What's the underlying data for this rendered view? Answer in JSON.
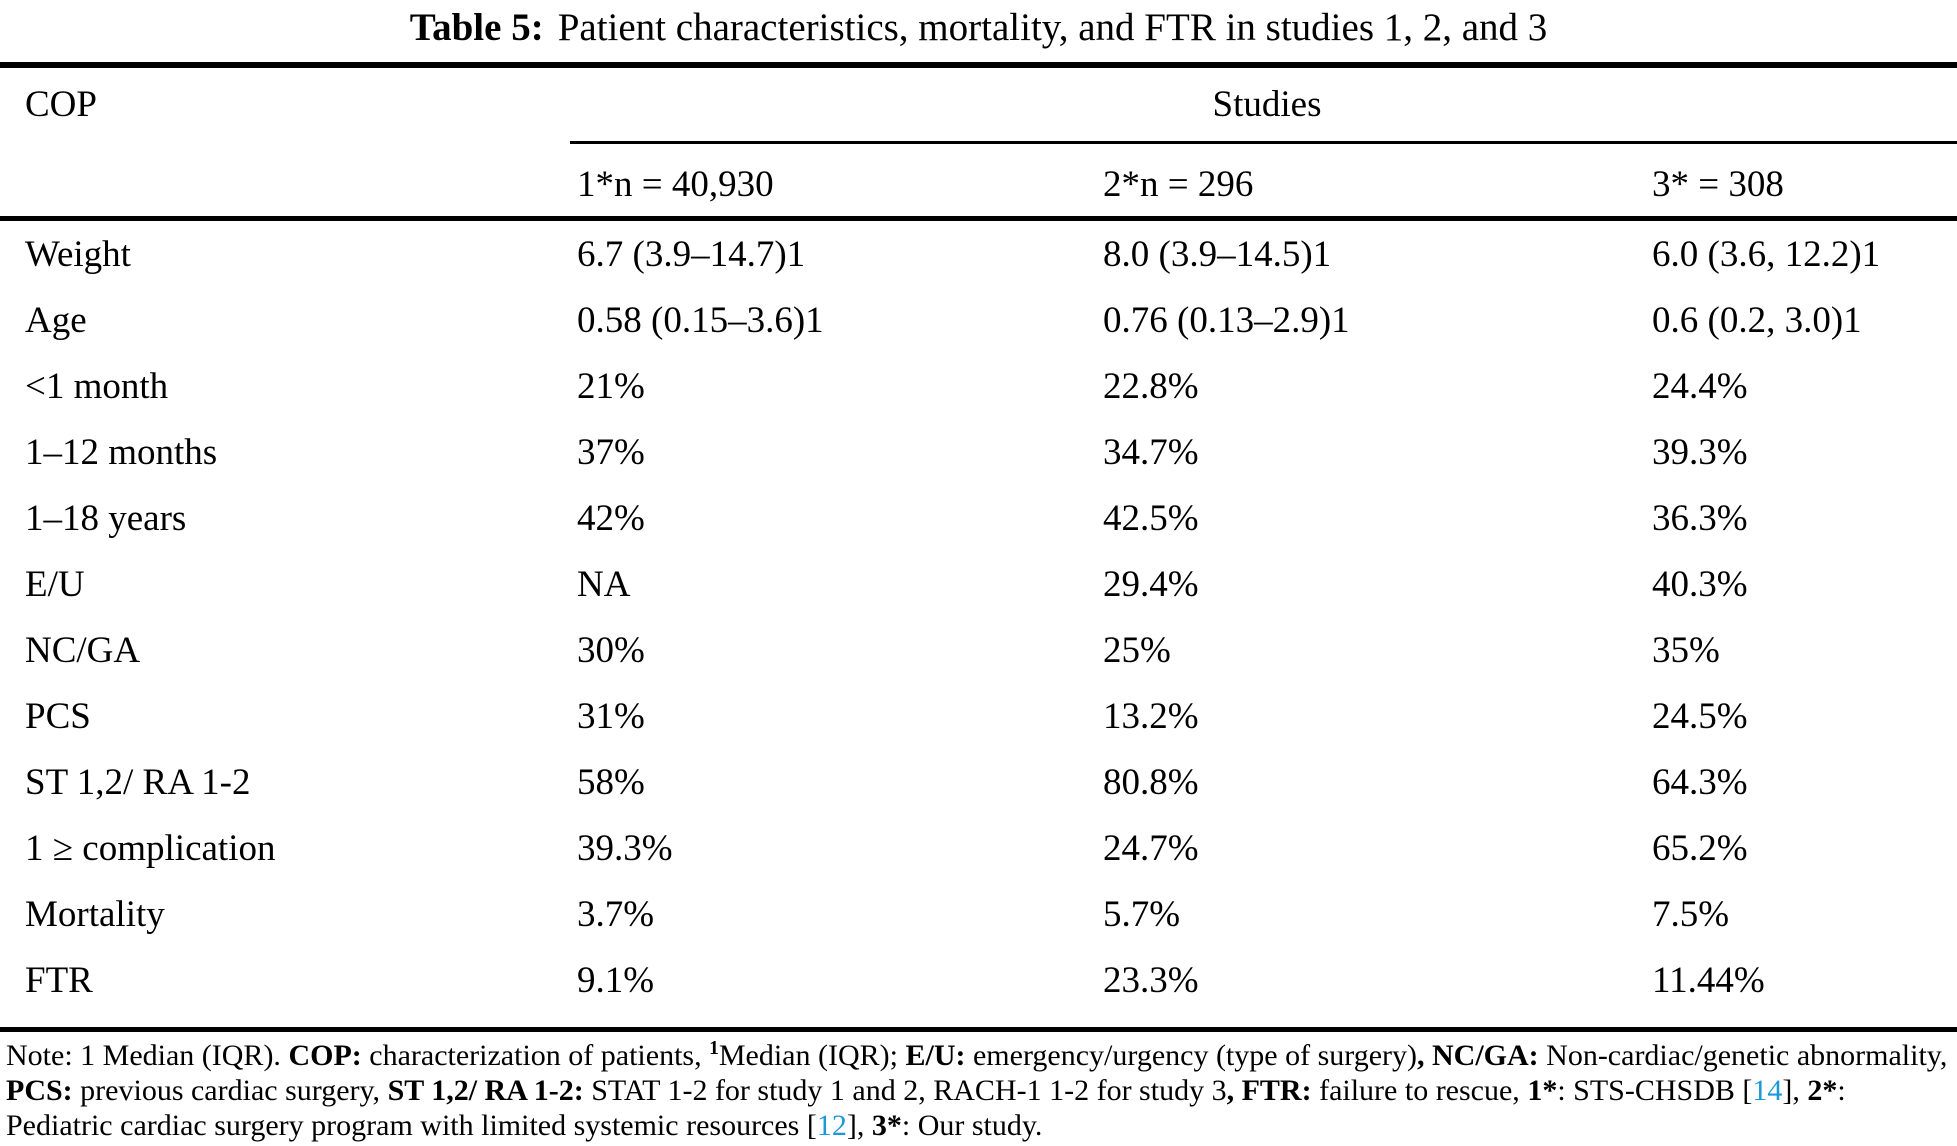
{
  "caption": {
    "label": "Table 5:",
    "title": "Patient characteristics, mortality, and FTR in studies 1, 2, and 3"
  },
  "header": {
    "row_label": "COP",
    "group_label": "Studies",
    "columns": [
      "1*n = 40,930",
      "2*n = 296",
      "3* = 308"
    ]
  },
  "table": {
    "rows": [
      {
        "label": "Weight",
        "study1": "6.7 (3.9–14.7)1",
        "study2": "8.0 (3.9–14.5)1",
        "study3": "6.0 (3.6, 12.2)1"
      },
      {
        "label": "Age",
        "study1": "0.58 (0.15–3.6)1",
        "study2": "0.76 (0.13–2.9)1",
        "study3": "0.6 (0.2, 3.0)1"
      },
      {
        "label": "<1 month",
        "study1": "21%",
        "study2": "22.8%",
        "study3": "24.4%"
      },
      {
        "label": "1–12 months",
        "study1": "37%",
        "study2": "34.7%",
        "study3": "39.3%"
      },
      {
        "label": "1–18 years",
        "study1": "42%",
        "study2": "42.5%",
        "study3": "36.3%"
      },
      {
        "label": "E/U",
        "study1": "NA",
        "study2": "29.4%",
        "study3": "40.3%"
      },
      {
        "label": "NC/GA",
        "study1": "30%",
        "study2": "25%",
        "study3": "35%"
      },
      {
        "label": "PCS",
        "study1": "31%",
        "study2": "13.2%",
        "study3": "24.5%"
      },
      {
        "label": "ST 1,2/ RA 1-2",
        "study1": "58%",
        "study2": "80.8%",
        "study3": "64.3%"
      },
      {
        "label": "1 ≥ complication",
        "study1": "39.3%",
        "study2": "24.7%",
        "study3": "65.2%"
      },
      {
        "label": "Mortality",
        "study1": "3.7%",
        "study2": "5.7%",
        "study3": "7.5%"
      },
      {
        "label": "FTR",
        "study1": "9.1%",
        "study2": "23.3%",
        "study3": "11.44%"
      }
    ]
  },
  "note": {
    "segments": [
      {
        "t": "Note: 1 Median (IQR). "
      },
      {
        "t": "COP:",
        "b": true
      },
      {
        "t": " characterization of patients, "
      },
      {
        "t": "1",
        "b": true,
        "sup": true
      },
      {
        "t": "Median (IQR); "
      },
      {
        "t": "E/U:",
        "b": true
      },
      {
        "t": " emergency/urgency (type of surgery)"
      },
      {
        "t": ", NC/GA:",
        "b": true
      },
      {
        "t": " Non-cardiac/genetic abnormality, "
      },
      {
        "t": "PCS:",
        "b": true
      },
      {
        "t": " previous cardiac surgery, "
      },
      {
        "t": "ST 1,2/ RA 1-2:",
        "b": true
      },
      {
        "t": " STAT 1-2 for study 1 and 2, RACH-1 1-2 for study 3"
      },
      {
        "t": ", FTR:",
        "b": true
      },
      {
        "t": " failure to rescue, "
      },
      {
        "t": "1*",
        "b": true
      },
      {
        "t": ": STS-CHSDB ["
      },
      {
        "t": "14",
        "link": true,
        "name": "citation-link-14"
      },
      {
        "t": "], "
      },
      {
        "t": "2*",
        "b": true
      },
      {
        "t": ": Pediatric cardiac surgery program with limited systemic resources ["
      },
      {
        "t": "12",
        "link": true,
        "name": "citation-link-12"
      },
      {
        "t": "], "
      },
      {
        "t": "3*",
        "b": true
      },
      {
        "t": ": Our study."
      }
    ]
  },
  "colors": {
    "text": "#000000",
    "background": "#ffffff",
    "citation_link": "#1b98d8"
  }
}
